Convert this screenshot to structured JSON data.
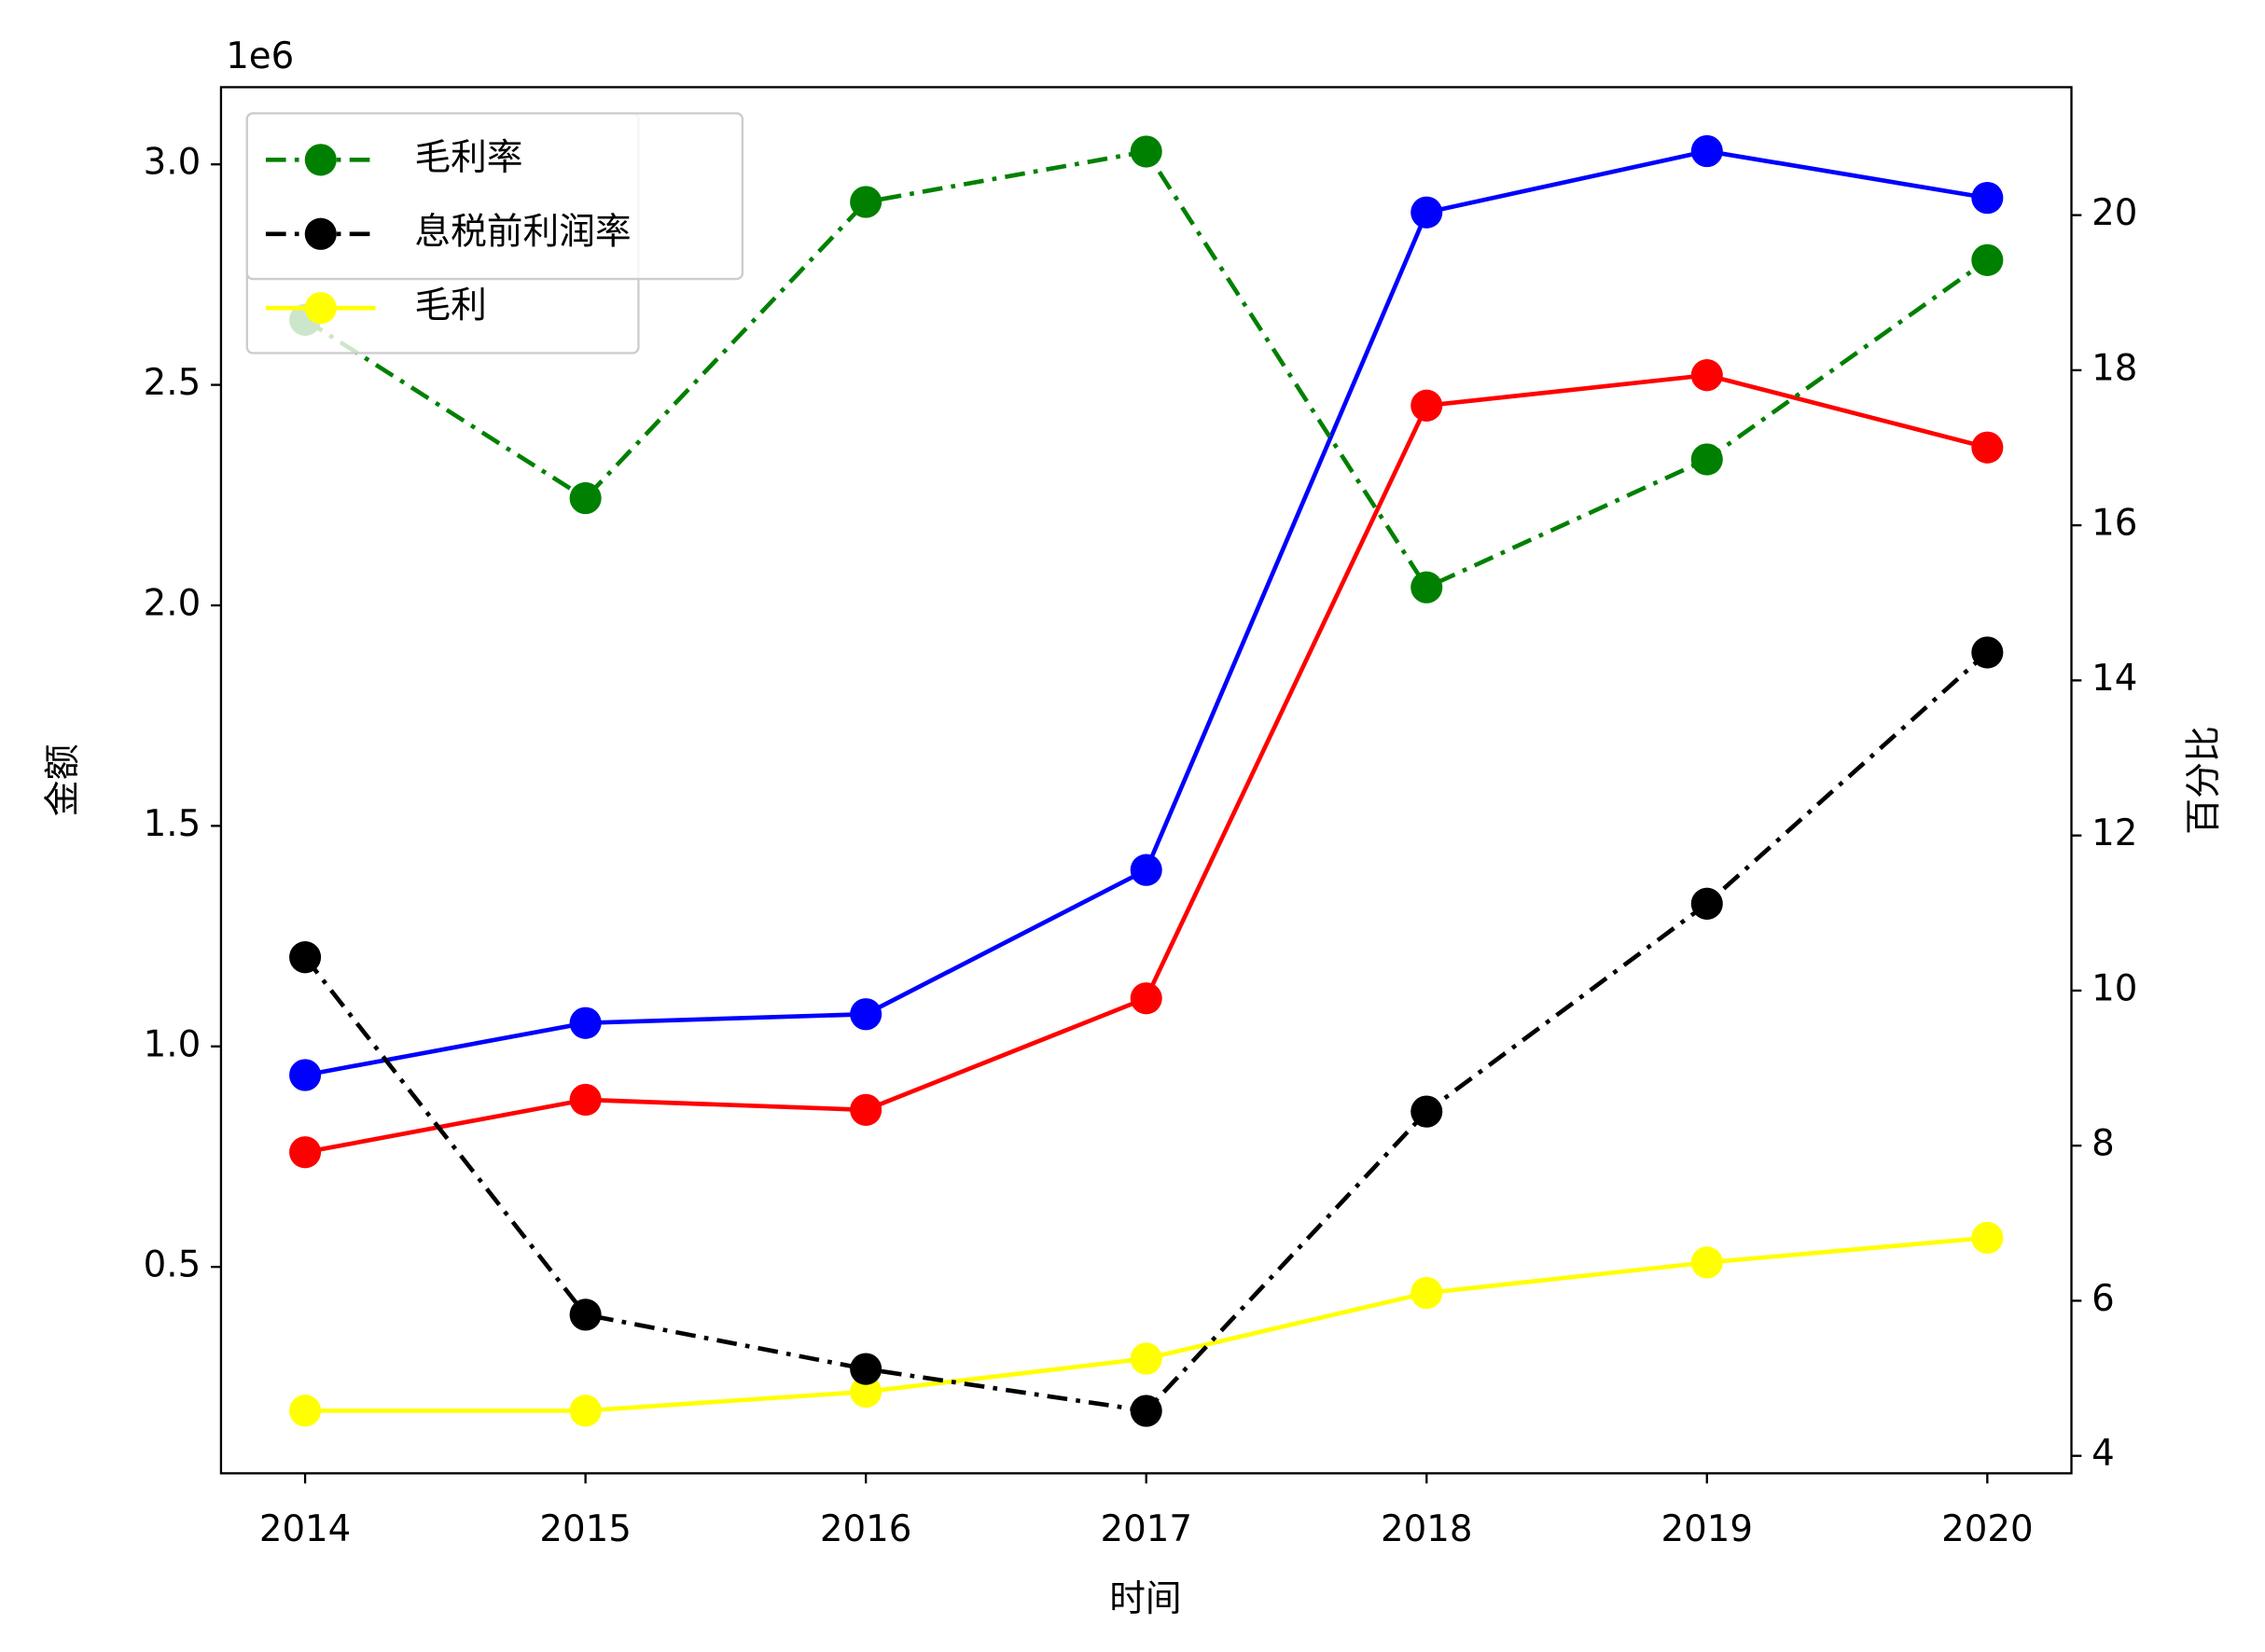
{
  "chart_data": {
    "type": "line",
    "x_label": "时间",
    "y_label": "金额",
    "y2_label": "百分比",
    "y_offset_text": "1e6",
    "x": [
      2014,
      2015,
      2016,
      2017,
      2018,
      2019,
      2020
    ],
    "xlim": [
      2013.7,
      2020.3
    ],
    "xticks": [
      2014,
      2015,
      2016,
      2017,
      2018,
      2019,
      2020
    ],
    "ylim": [
      32000,
      3175000
    ],
    "yticks": [
      {
        "value": 500000,
        "label": "0.5"
      },
      {
        "value": 1000000,
        "label": "1.0"
      },
      {
        "value": 1500000,
        "label": "1.5"
      },
      {
        "value": 2000000,
        "label": "2.0"
      },
      {
        "value": 2500000,
        "label": "2.5"
      },
      {
        "value": 3000000,
        "label": "3.0"
      }
    ],
    "y2lim": [
      3.775,
      21.65
    ],
    "y2ticks": [
      4,
      6,
      8,
      10,
      12,
      14,
      16,
      18,
      20
    ],
    "legend": "upper left",
    "series": [
      {
        "color": "#0000ff",
        "linestyle": "solid",
        "values": [
          935000,
          1053000,
          1073000,
          1400000,
          2891000,
          3030000,
          2924000
        ]
      },
      {
        "color": "#ff0000",
        "linestyle": "solid",
        "values": [
          760000,
          879000,
          856000,
          1109000,
          2453000,
          2522000,
          2358000
        ]
      },
      {
        "name": "毛利",
        "color": "#ffff00",
        "linestyle": "solid",
        "values": [
          174000,
          174000,
          217000,
          292000,
          441000,
          510000,
          566000
        ]
      },
      {
        "name": "毛利率",
        "color": "#008000",
        "linestyle": "dashdot",
        "axis": "y2",
        "values": [
          18.65,
          16.35,
          20.17,
          20.82,
          15.2,
          16.85,
          19.42
        ]
      },
      {
        "name": "息税前利润率",
        "color": "#000000",
        "linestyle": "dashdot",
        "axis": "y2",
        "values": [
          10.43,
          5.82,
          5.12,
          4.58,
          8.44,
          11.12,
          14.36
        ]
      }
    ]
  }
}
